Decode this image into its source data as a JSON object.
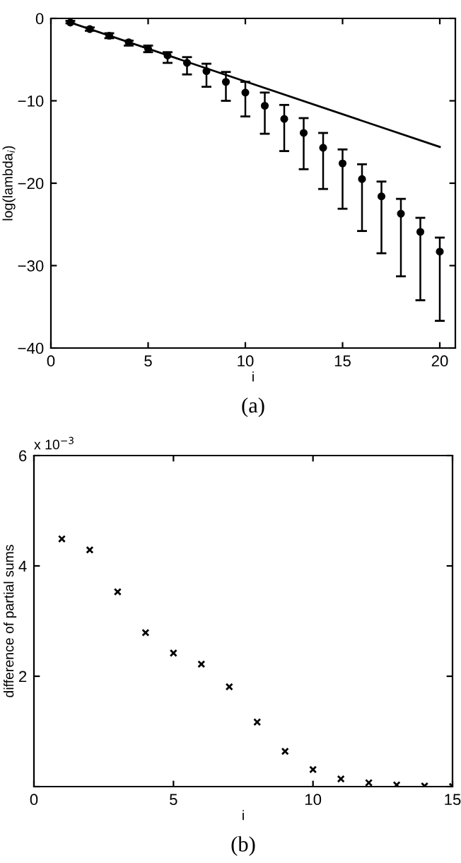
{
  "chart_data": [
    {
      "type": "scatter",
      "xlabel": "i",
      "ylabel": "log(lambda$_{i}$)",
      "annotations": [
        "(a)"
      ],
      "marker": "circle",
      "grid": false,
      "legend": false,
      "xlim": [
        0,
        20.8
      ],
      "xticks": [
        0,
        5,
        10,
        15,
        20
      ],
      "ylim": [
        -40,
        0
      ],
      "yticks": [
        -40,
        -30,
        -20,
        -10,
        0
      ],
      "series": [
        {
          "color": "#000000",
          "x": [
            1,
            2,
            3,
            4,
            5,
            6,
            7,
            8,
            9,
            10,
            11,
            12,
            13,
            14,
            15,
            16,
            17,
            18,
            19,
            20
          ],
          "values": [
            -0.5,
            -1.3,
            -2.1,
            -2.9,
            -3.7,
            -4.5,
            -5.4,
            -6.4,
            -7.7,
            -9.0,
            -10.6,
            -12.2,
            -13.9,
            -15.7,
            -17.6,
            -19.5,
            -21.6,
            -23.7,
            -25.9,
            -28.3
          ],
          "errors": [
            [
              -0.6,
              -0.3
            ],
            [
              -1.5,
              -1.1
            ],
            [
              -2.4,
              -1.8
            ],
            [
              -3.3,
              -2.7
            ],
            [
              -4.1,
              -3.3
            ],
            [
              -5.4,
              -4.1
            ],
            [
              -6.8,
              -4.7
            ],
            [
              -8.3,
              -5.5
            ],
            [
              -10.0,
              -6.5
            ],
            [
              -11.9,
              -7.7
            ],
            [
              -14.0,
              -9.0
            ],
            [
              -16.1,
              -10.5
            ],
            [
              -18.3,
              -12.1
            ],
            [
              -20.7,
              -13.9
            ],
            [
              -23.1,
              -15.9
            ],
            [
              -25.8,
              -17.7
            ],
            [
              -28.5,
              -19.8
            ],
            [
              -31.3,
              -21.9
            ],
            [
              -34.2,
              -24.2
            ],
            [
              -36.7,
              -26.6
            ]
          ]
        },
        {
          "type": "line",
          "color": "#000000",
          "x": [
            1,
            20
          ],
          "values": [
            -0.5,
            -15.6
          ],
          "marker": "none",
          "line_style": "solid"
        }
      ]
    },
    {
      "type": "scatter",
      "xlabel": "i",
      "ylabel": "difference of partial sums",
      "annotations": [
        "x 10$^{−3}$",
        "(b)"
      ],
      "marker": "cross",
      "grid": false,
      "legend": false,
      "xlim": [
        0,
        15
      ],
      "xticks": [
        0,
        5,
        10,
        15
      ],
      "ylim": [
        0,
        6
      ],
      "yticks": [
        {
          "value": 0,
          "label": null
        },
        2,
        4,
        6
      ],
      "series": [
        {
          "color": "#000000",
          "x": [
            1,
            2,
            3,
            4,
            5,
            6,
            7,
            8,
            9,
            10,
            11,
            12,
            13,
            14,
            15
          ],
          "values": [
            4.49,
            4.29,
            3.53,
            2.79,
            2.42,
            2.22,
            1.81,
            1.17,
            0.64,
            0.31,
            0.14,
            0.07,
            0.03,
            0.01,
            0.0
          ]
        }
      ]
    }
  ]
}
